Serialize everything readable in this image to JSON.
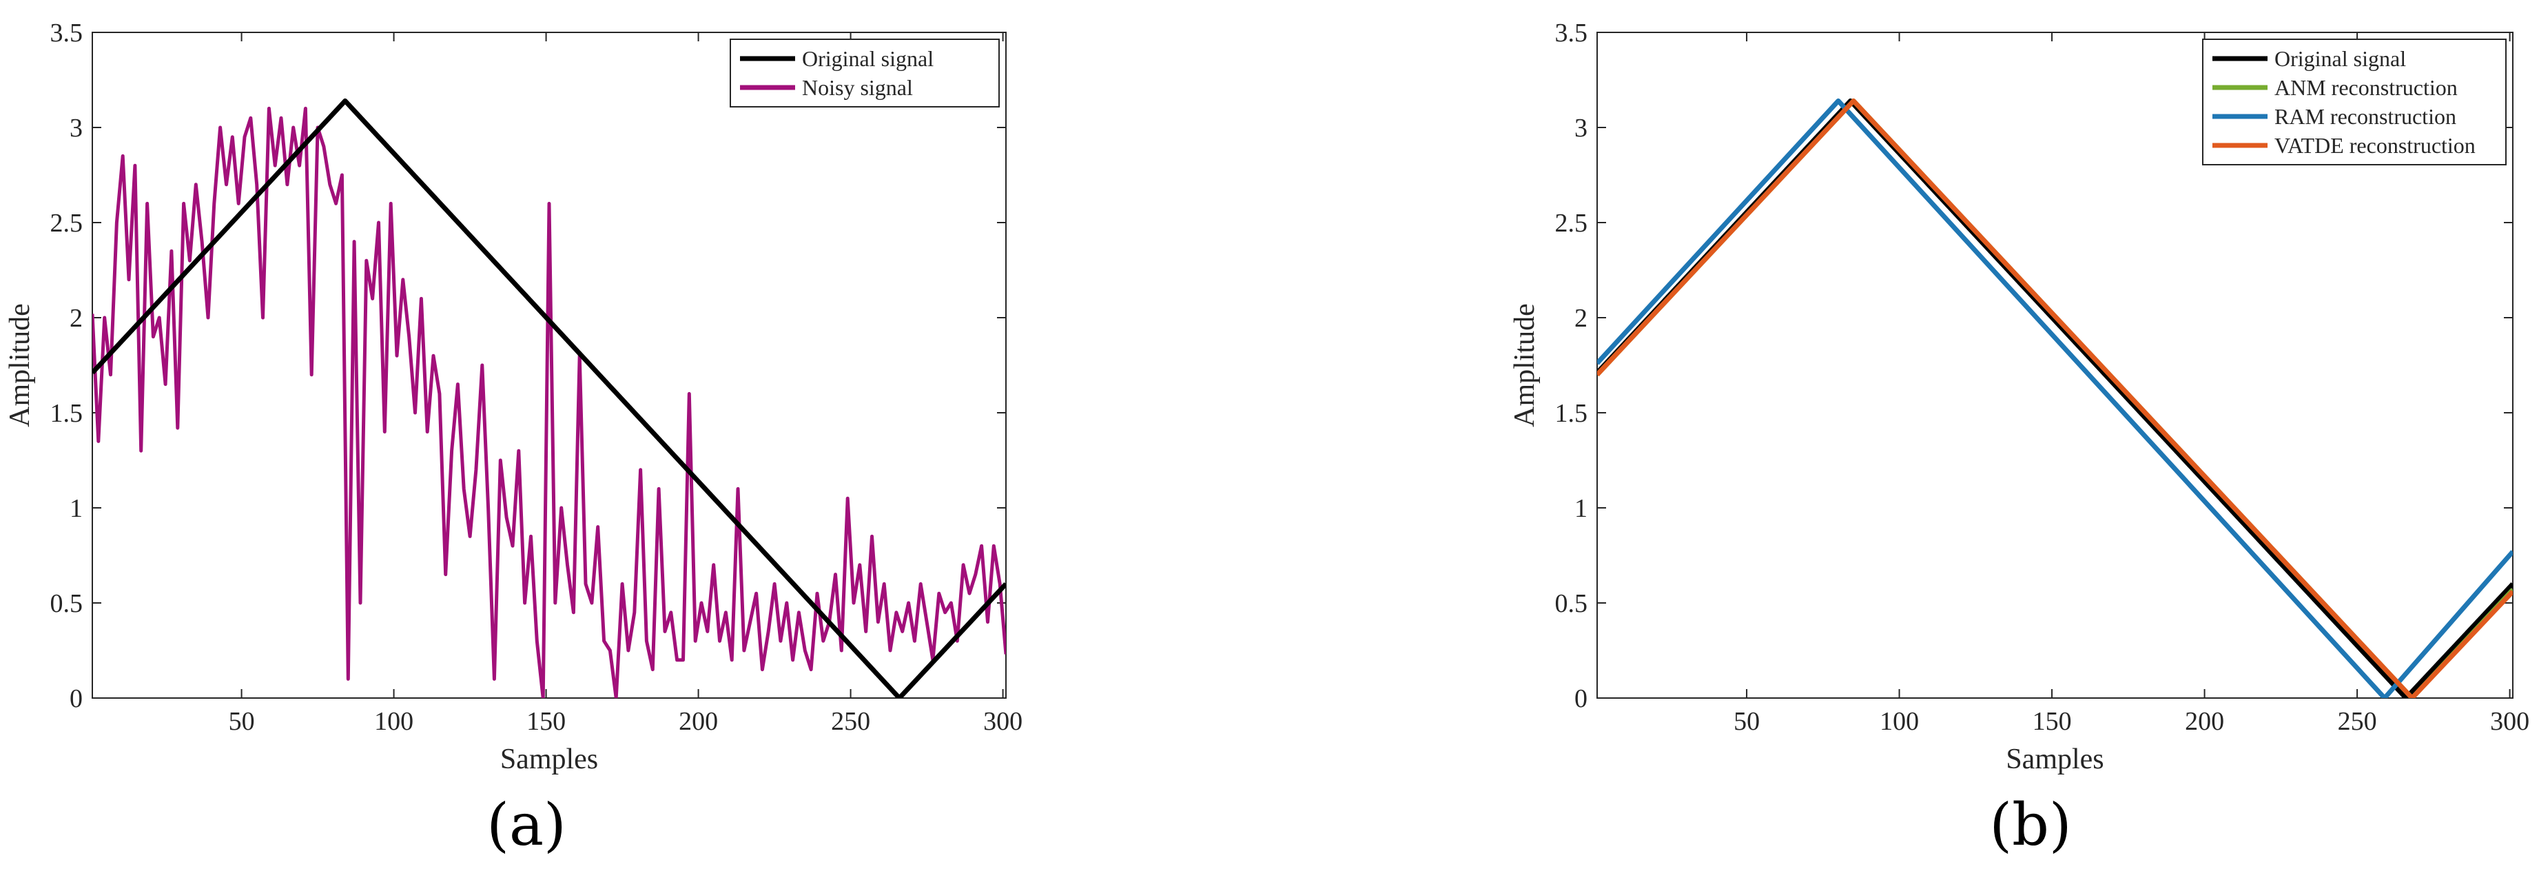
{
  "figure": {
    "panels": [
      {
        "caption": "(a)"
      },
      {
        "caption": "(b)"
      }
    ]
  },
  "chart_data": [
    {
      "type": "line",
      "panel": "(a)",
      "xlabel": "Samples",
      "ylabel": "Amplitude",
      "xlim": [
        1,
        301
      ],
      "ylim": [
        0,
        3.5
      ],
      "xticks": [
        50,
        100,
        150,
        200,
        250,
        300
      ],
      "yticks": [
        0,
        0.5,
        1,
        1.5,
        2,
        2.5,
        3,
        3.5
      ],
      "xtick_labels": [
        "50",
        "100",
        "150",
        "200",
        "250",
        "300"
      ],
      "ytick_labels": [
        "0",
        "0.5",
        "1",
        "1.5",
        "2",
        "2.5",
        "3",
        "3.5"
      ],
      "legend_position": "top-right",
      "grid": false,
      "series": [
        {
          "name": "Original signal",
          "color": "#000000",
          "x": [
            1,
            84,
            266,
            301
          ],
          "y": [
            1.71,
            3.14,
            0,
            0.6
          ]
        },
        {
          "name": "Noisy signal",
          "color": "#A2107A",
          "x": [
            1,
            3,
            5,
            7,
            9,
            11,
            13,
            15,
            17,
            19,
            21,
            23,
            25,
            27,
            29,
            31,
            33,
            35,
            37,
            39,
            41,
            43,
            45,
            47,
            49,
            51,
            53,
            55,
            57,
            59,
            61,
            63,
            65,
            67,
            69,
            71,
            73,
            75,
            77,
            79,
            81,
            83,
            85,
            87,
            89,
            91,
            93,
            95,
            97,
            99,
            101,
            103,
            105,
            107,
            109,
            111,
            113,
            115,
            117,
            119,
            121,
            123,
            125,
            127,
            129,
            131,
            133,
            135,
            137,
            139,
            141,
            143,
            145,
            147,
            149,
            151,
            153,
            155,
            157,
            159,
            161,
            163,
            165,
            167,
            169,
            171,
            173,
            175,
            177,
            179,
            181,
            183,
            185,
            187,
            189,
            191,
            193,
            195,
            197,
            199,
            201,
            203,
            205,
            207,
            209,
            211,
            213,
            215,
            217,
            219,
            221,
            223,
            225,
            227,
            229,
            231,
            233,
            235,
            237,
            239,
            241,
            243,
            245,
            247,
            249,
            251,
            253,
            255,
            257,
            259,
            261,
            263,
            265,
            267,
            269,
            271,
            273,
            275,
            277,
            279,
            281,
            283,
            285,
            287,
            289,
            291,
            293,
            295,
            297,
            299,
            301
          ],
          "y": [
            2.02,
            1.35,
            2.0,
            1.7,
            2.5,
            2.85,
            2.2,
            2.8,
            1.3,
            2.6,
            1.9,
            2.0,
            1.65,
            2.35,
            1.42,
            2.6,
            2.3,
            2.7,
            2.4,
            2.0,
            2.6,
            3.0,
            2.7,
            2.95,
            2.6,
            2.95,
            3.05,
            2.7,
            2.0,
            3.1,
            2.8,
            3.05,
            2.7,
            3.0,
            2.8,
            3.1,
            1.7,
            3.0,
            2.9,
            2.7,
            2.6,
            2.75,
            0.1,
            2.4,
            0.5,
            2.3,
            2.1,
            2.5,
            1.4,
            2.6,
            1.8,
            2.2,
            1.9,
            1.5,
            2.1,
            1.4,
            1.8,
            1.6,
            0.65,
            1.3,
            1.65,
            1.1,
            0.85,
            1.2,
            1.75,
            1.0,
            0.1,
            1.25,
            0.95,
            0.8,
            1.3,
            0.5,
            0.85,
            0.3,
            0.0,
            2.6,
            0.5,
            1.0,
            0.7,
            0.45,
            1.8,
            0.6,
            0.5,
            0.9,
            0.3,
            0.25,
            0.0,
            0.6,
            0.25,
            0.45,
            1.2,
            0.3,
            0.15,
            1.1,
            0.35,
            0.45,
            0.2,
            0.2,
            1.6,
            0.3,
            0.5,
            0.35,
            0.7,
            0.3,
            0.45,
            0.2,
            1.1,
            0.25,
            0.4,
            0.55,
            0.15,
            0.35,
            0.6,
            0.3,
            0.5,
            0.2,
            0.45,
            0.25,
            0.15,
            0.55,
            0.3,
            0.4,
            0.65,
            0.25,
            1.05,
            0.5,
            0.7,
            0.35,
            0.85,
            0.4,
            0.6,
            0.25,
            0.45,
            0.35,
            0.5,
            0.3,
            0.6,
            0.4,
            0.2,
            0.55,
            0.45,
            0.5,
            0.3,
            0.7,
            0.55,
            0.65,
            0.8,
            0.4,
            0.8,
            0.6,
            0.23
          ]
        }
      ]
    },
    {
      "type": "line",
      "panel": "(b)",
      "xlabel": "Samples",
      "ylabel": "Amplitude",
      "xlim": [
        1,
        301
      ],
      "ylim": [
        0,
        3.5
      ],
      "xticks": [
        50,
        100,
        150,
        200,
        250,
        300
      ],
      "yticks": [
        0,
        0.5,
        1,
        1.5,
        2,
        2.5,
        3,
        3.5
      ],
      "xtick_labels": [
        "50",
        "100",
        "150",
        "200",
        "250",
        "300"
      ],
      "ytick_labels": [
        "0",
        "0.5",
        "1",
        "1.5",
        "2",
        "2.5",
        "3",
        "3.5"
      ],
      "legend_position": "top-right",
      "grid": false,
      "series": [
        {
          "name": "Original signal",
          "color": "#000000",
          "x": [
            1,
            84,
            266,
            301
          ],
          "y": [
            1.71,
            3.14,
            0,
            0.6
          ]
        },
        {
          "name": "ANM reconstruction",
          "color": "#77AC30",
          "x": [
            1,
            85,
            268,
            301
          ],
          "y": [
            1.7,
            3.14,
            0,
            0.57
          ]
        },
        {
          "name": "RAM reconstruction",
          "color": "#1F77B4",
          "x": [
            1,
            80,
            259,
            301
          ],
          "y": [
            1.76,
            3.14,
            0,
            0.77
          ]
        },
        {
          "name": "VATDE reconstruction",
          "color": "#E15A1E",
          "x": [
            1,
            85,
            268,
            301
          ],
          "y": [
            1.7,
            3.14,
            0,
            0.56
          ]
        }
      ]
    }
  ]
}
